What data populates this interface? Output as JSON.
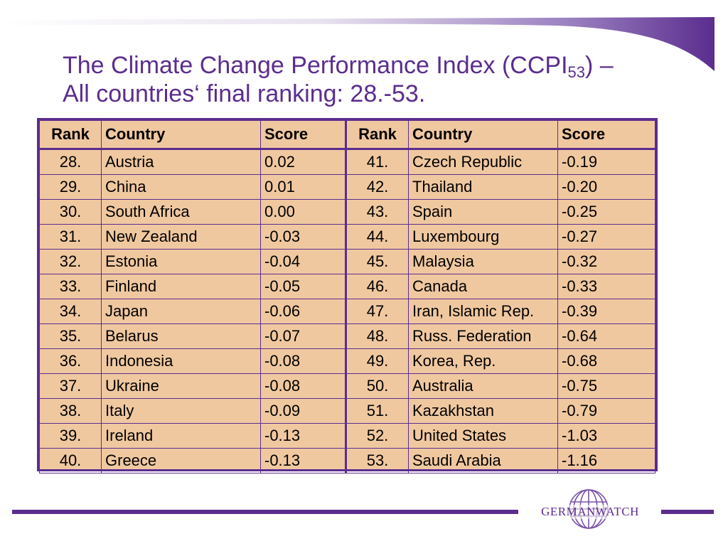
{
  "slide": {
    "title_main": "The Climate Change Performance Index (CCPI",
    "title_sub": "53",
    "title_end": ") –",
    "title_line2": "All countries‘ final ranking: 28.-53."
  },
  "table": {
    "headers": [
      "Rank",
      "Country",
      "Score",
      "Rank",
      "Country",
      "Score"
    ],
    "rows": [
      [
        "28.",
        "Austria",
        "0.02",
        "41.",
        "Czech Republic",
        "-0.19"
      ],
      [
        "29.",
        "China",
        "0.01",
        "42.",
        "Thailand",
        "-0.20"
      ],
      [
        "30.",
        "South Africa",
        "0.00",
        "43.",
        "Spain",
        "-0.25"
      ],
      [
        "31.",
        "New Zealand",
        "-0.03",
        "44.",
        "Luxembourg",
        "-0.27"
      ],
      [
        "32.",
        "Estonia",
        "-0.04",
        "45.",
        "Malaysia",
        "-0.32"
      ],
      [
        "33.",
        "Finland",
        "-0.05",
        "46.",
        "Canada",
        "-0.33"
      ],
      [
        "34.",
        "Japan",
        "-0.06",
        "47.",
        "Iran, Islamic Rep.",
        "-0.39"
      ],
      [
        "35.",
        "Belarus",
        "-0.07",
        "48.",
        "Russ. Federation",
        "-0.64"
      ],
      [
        "36.",
        "Indonesia",
        "-0.08",
        "49.",
        "Korea, Rep.",
        "-0.68"
      ],
      [
        "37.",
        "Ukraine",
        "-0.08",
        "50.",
        "Australia",
        "-0.75"
      ],
      [
        "38.",
        "Italy",
        "-0.09",
        "51.",
        "Kazakhstan",
        "-0.79"
      ],
      [
        "39.",
        "Ireland",
        "-0.13",
        "52.",
        "United States",
        "-1.03"
      ],
      [
        "40.",
        "Greece",
        "-0.13",
        "53.",
        "Saudi Arabia",
        "-1.16"
      ]
    ]
  },
  "footer": {
    "logo_text": "GERMANWATCH",
    "logo_icon": "globe-icon"
  },
  "colors": {
    "accent": "#5b2d8e",
    "table_fill": "#f0c8a0"
  }
}
